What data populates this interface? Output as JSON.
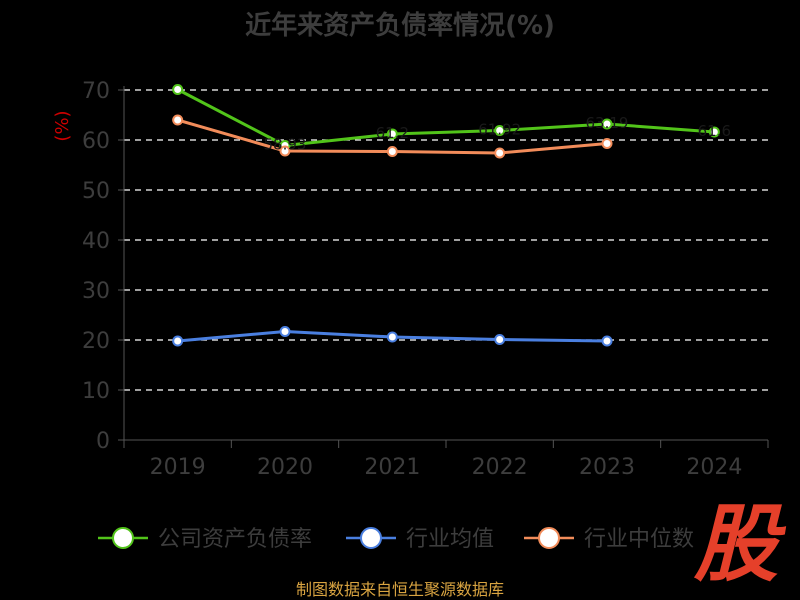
{
  "chart_data": {
    "type": "line",
    "title": "近年来资产负债率情况(%)",
    "xlabel": "",
    "ylabel": "(%)",
    "categories": [
      "2019",
      "2020",
      "2021",
      "2022",
      "2023",
      "2024"
    ],
    "ylim": [
      0,
      70
    ],
    "yticks": [
      0,
      10,
      20,
      30,
      40,
      50,
      60,
      70
    ],
    "grid": true,
    "legend_position": "bottom",
    "series": [
      {
        "name": "公司资产负债率",
        "color": "#52c41a",
        "values": [
          70.1,
          58.9,
          61.2,
          61.9,
          63.2,
          61.6
        ],
        "labels": [
          "",
          "58.93",
          "61.2",
          "61.92",
          "63.19",
          "61.6"
        ]
      },
      {
        "name": "行业均值",
        "color": "#4a7fe0",
        "values": [
          19.8,
          21.7,
          20.6,
          20.1,
          19.8,
          null
        ],
        "labels": [
          "",
          "",
          "",
          "",
          "",
          ""
        ]
      },
      {
        "name": "行业中位数",
        "color": "#f28c5a",
        "values": [
          64.0,
          57.8,
          57.7,
          57.4,
          59.3,
          null
        ],
        "labels": [
          "",
          "",
          "",
          "",
          "",
          ""
        ]
      }
    ]
  },
  "colors": {
    "title": "#3d3d3d",
    "ylabel": "#cc0000",
    "tick": "#3d3d3d",
    "axis": "#555555",
    "grid": "#ffffff",
    "legend_text": "#3d3d3d",
    "source": "#d9a441",
    "logo": "#e5402a"
  },
  "source": "制图数据来自恒生聚源数据库",
  "logo_text": "股"
}
